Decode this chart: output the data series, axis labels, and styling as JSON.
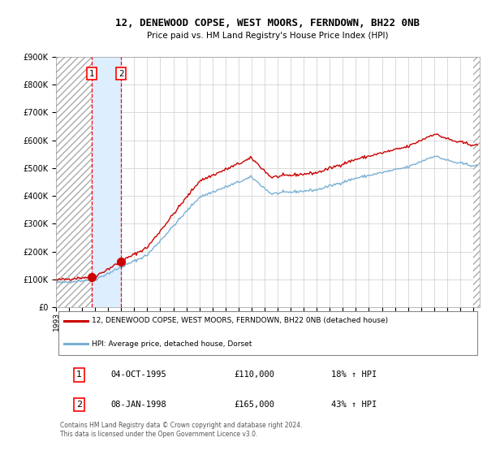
{
  "title": "12, DENEWOOD COPSE, WEST MOORS, FERNDOWN, BH22 0NB",
  "subtitle": "Price paid vs. HM Land Registry's House Price Index (HPI)",
  "legend_line1": "12, DENEWOOD COPSE, WEST MOORS, FERNDOWN, BH22 0NB (detached house)",
  "legend_line2": "HPI: Average price, detached house, Dorset",
  "sale1_price": 110000,
  "sale1_text": "04-OCT-1995",
  "sale1_hpi_text": "18% ↑ HPI",
  "sale1_year": 1995,
  "sale1_month": 10,
  "sale2_price": 165000,
  "sale2_text": "08-JAN-1998",
  "sale2_hpi_text": "43% ↑ HPI",
  "sale2_year": 1998,
  "sale2_month": 1,
  "footer": "Contains HM Land Registry data © Crown copyright and database right 2024.\nThis data is licensed under the Open Government Licence v3.0.",
  "property_color": "#cc0000",
  "hpi_color": "#7ab0d4",
  "ylim": [
    0,
    900000
  ],
  "yticks": [
    0,
    100000,
    200000,
    300000,
    400000,
    500000,
    600000,
    700000,
    800000,
    900000
  ],
  "xmin": 1993.0,
  "xmax": 2025.5,
  "hatch_color": "#aaaaaa",
  "between_color": "#ddeeff"
}
